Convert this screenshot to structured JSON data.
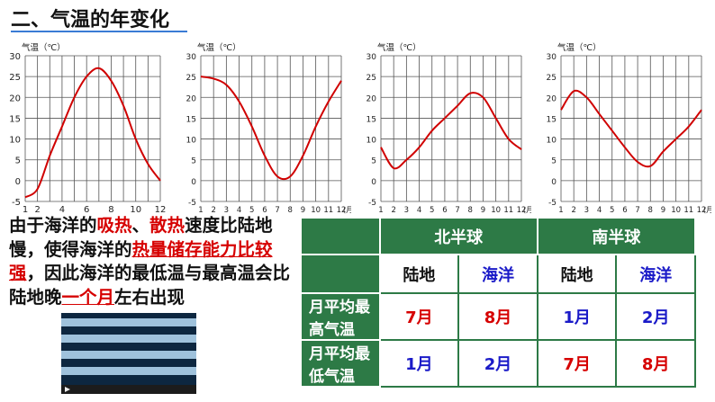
{
  "title": "二、气温的年变化",
  "chart_data": [
    {
      "type": "line",
      "ylabel": "气温（℃）",
      "x": [
        1,
        2,
        3,
        4,
        5,
        6,
        7,
        8,
        9,
        10,
        11,
        12
      ],
      "values": [
        -4,
        -2,
        6,
        13,
        20,
        25,
        27,
        24,
        18,
        10,
        4,
        0
      ],
      "ylim": [
        -5,
        30
      ],
      "yticks": [
        -5,
        0,
        5,
        10,
        15,
        20,
        25,
        30
      ],
      "xticks": [
        1,
        2,
        4,
        6,
        8,
        10,
        12
      ],
      "xunit": "",
      "color": "#d00000"
    },
    {
      "type": "line",
      "ylabel": "气温（℃）",
      "x": [
        1,
        2,
        3,
        4,
        5,
        6,
        7,
        8,
        9,
        10,
        11,
        12
      ],
      "values": [
        25,
        24.5,
        23,
        19,
        13,
        6,
        1,
        1,
        6,
        13,
        19,
        24
      ],
      "ylim": [
        -5,
        30
      ],
      "yticks": [
        -5,
        0,
        5,
        10,
        15,
        20,
        25,
        30
      ],
      "xticks": [
        1,
        2,
        3,
        4,
        5,
        6,
        7,
        8,
        9,
        10,
        11,
        12
      ],
      "xunit": "(月)",
      "color": "#d00000"
    },
    {
      "type": "line",
      "ylabel": "气温（℃）",
      "x": [
        1,
        2,
        3,
        4,
        5,
        6,
        7,
        8,
        9,
        10,
        11,
        12
      ],
      "values": [
        8,
        3,
        5,
        8,
        12,
        15,
        18,
        21,
        20,
        15,
        10,
        7.5
      ],
      "ylim": [
        -5,
        30
      ],
      "yticks": [
        -5,
        0,
        5,
        10,
        15,
        20,
        25,
        30
      ],
      "xticks": [
        1,
        2,
        3,
        4,
        5,
        6,
        7,
        8,
        9,
        10,
        11,
        12
      ],
      "xunit": "(月)",
      "color": "#d00000"
    },
    {
      "type": "line",
      "ylabel": "气温（℃）",
      "x": [
        1,
        2,
        3,
        4,
        5,
        6,
        7,
        8,
        9,
        10,
        11,
        12
      ],
      "values": [
        17,
        21.5,
        20,
        16,
        12,
        8,
        4.5,
        3.5,
        7,
        10,
        13,
        17
      ],
      "ylim": [
        -5,
        30
      ],
      "yticks": [
        -5,
        0,
        5,
        10,
        15,
        20,
        25,
        30
      ],
      "xticks": [
        1,
        2,
        3,
        4,
        5,
        6,
        7,
        8,
        9,
        10,
        11,
        12
      ],
      "xunit": "(月)",
      "color": "#d00000"
    }
  ],
  "explain": [
    {
      "t": "由于海洋的",
      "s": "n"
    },
    {
      "t": "吸热",
      "s": "r"
    },
    {
      "t": "、",
      "s": "n"
    },
    {
      "t": "散热",
      "s": "r"
    },
    {
      "t": "速度比陆地慢，使得海洋的",
      "s": "n"
    },
    {
      "t": "热量储存能力比较强",
      "s": "u"
    },
    {
      "t": "，因此海洋的最低温与最高温会比陆地晚",
      "s": "n"
    },
    {
      "t": "一个月",
      "s": "u"
    },
    {
      "t": "左右出现",
      "s": "n"
    }
  ],
  "table": {
    "north": "北半球",
    "south": "南半球",
    "land": "陆地",
    "ocean": "海洋",
    "row_max": "月平均最高气温",
    "row_min": "月平均最低气温",
    "max": [
      "7月",
      "8月",
      "1月",
      "2月"
    ],
    "min": [
      "1月",
      "2月",
      "7月",
      "8月"
    ]
  },
  "colors": {
    "accent": "#d60000",
    "table_green": "#2d7a46",
    "blue": "#1a1ac8"
  }
}
